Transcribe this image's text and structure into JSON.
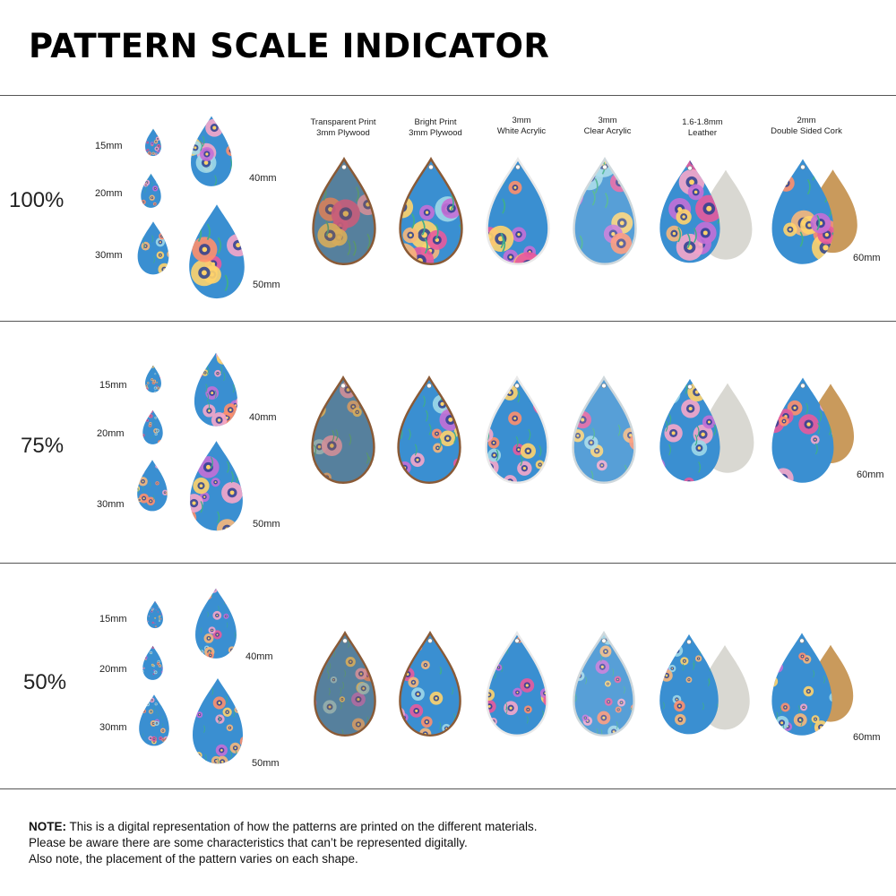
{
  "title": "PATTERN SCALE INDICATOR",
  "colors": {
    "background": "#ffffff",
    "divider": "#555555",
    "pattern_base": "#3a8fd1",
    "plywood_edge": "#8a5a36",
    "leather": "#d9d8d2",
    "cork": "#c99a5c"
  },
  "materials": [
    {
      "line1": "Transparent Print",
      "line2": "3mm Plywood"
    },
    {
      "line1": "Bright Print",
      "line2": "3mm Plywood"
    },
    {
      "line1": "3mm",
      "line2": "White Acrylic"
    },
    {
      "line1": "3mm",
      "line2": "Clear Acrylic"
    },
    {
      "line1": "1.6-1.8mm",
      "line2": "Leather"
    },
    {
      "line1": "2mm",
      "line2": "Double Sided Cork"
    }
  ],
  "sections": [
    {
      "scale": "100%",
      "sizes": [
        "15mm",
        "20mm",
        "30mm",
        "40mm",
        "50mm"
      ],
      "large_size": "60mm"
    },
    {
      "scale": "75%",
      "sizes": [
        "15mm",
        "20mm",
        "30mm",
        "40mm",
        "50mm"
      ],
      "large_size": "60mm"
    },
    {
      "scale": "50%",
      "sizes": [
        "15mm",
        "20mm",
        "30mm",
        "40mm",
        "50mm"
      ],
      "large_size": "60mm"
    }
  ],
  "note": {
    "label": "NOTE:",
    "line1": " This is a digital representation of how the patterns are printed on the different materials.",
    "line2": "Please be aware there are some characteristics that can’t be represented digitally.",
    "line3": "Also note, the placement of the pattern varies on each shape."
  }
}
